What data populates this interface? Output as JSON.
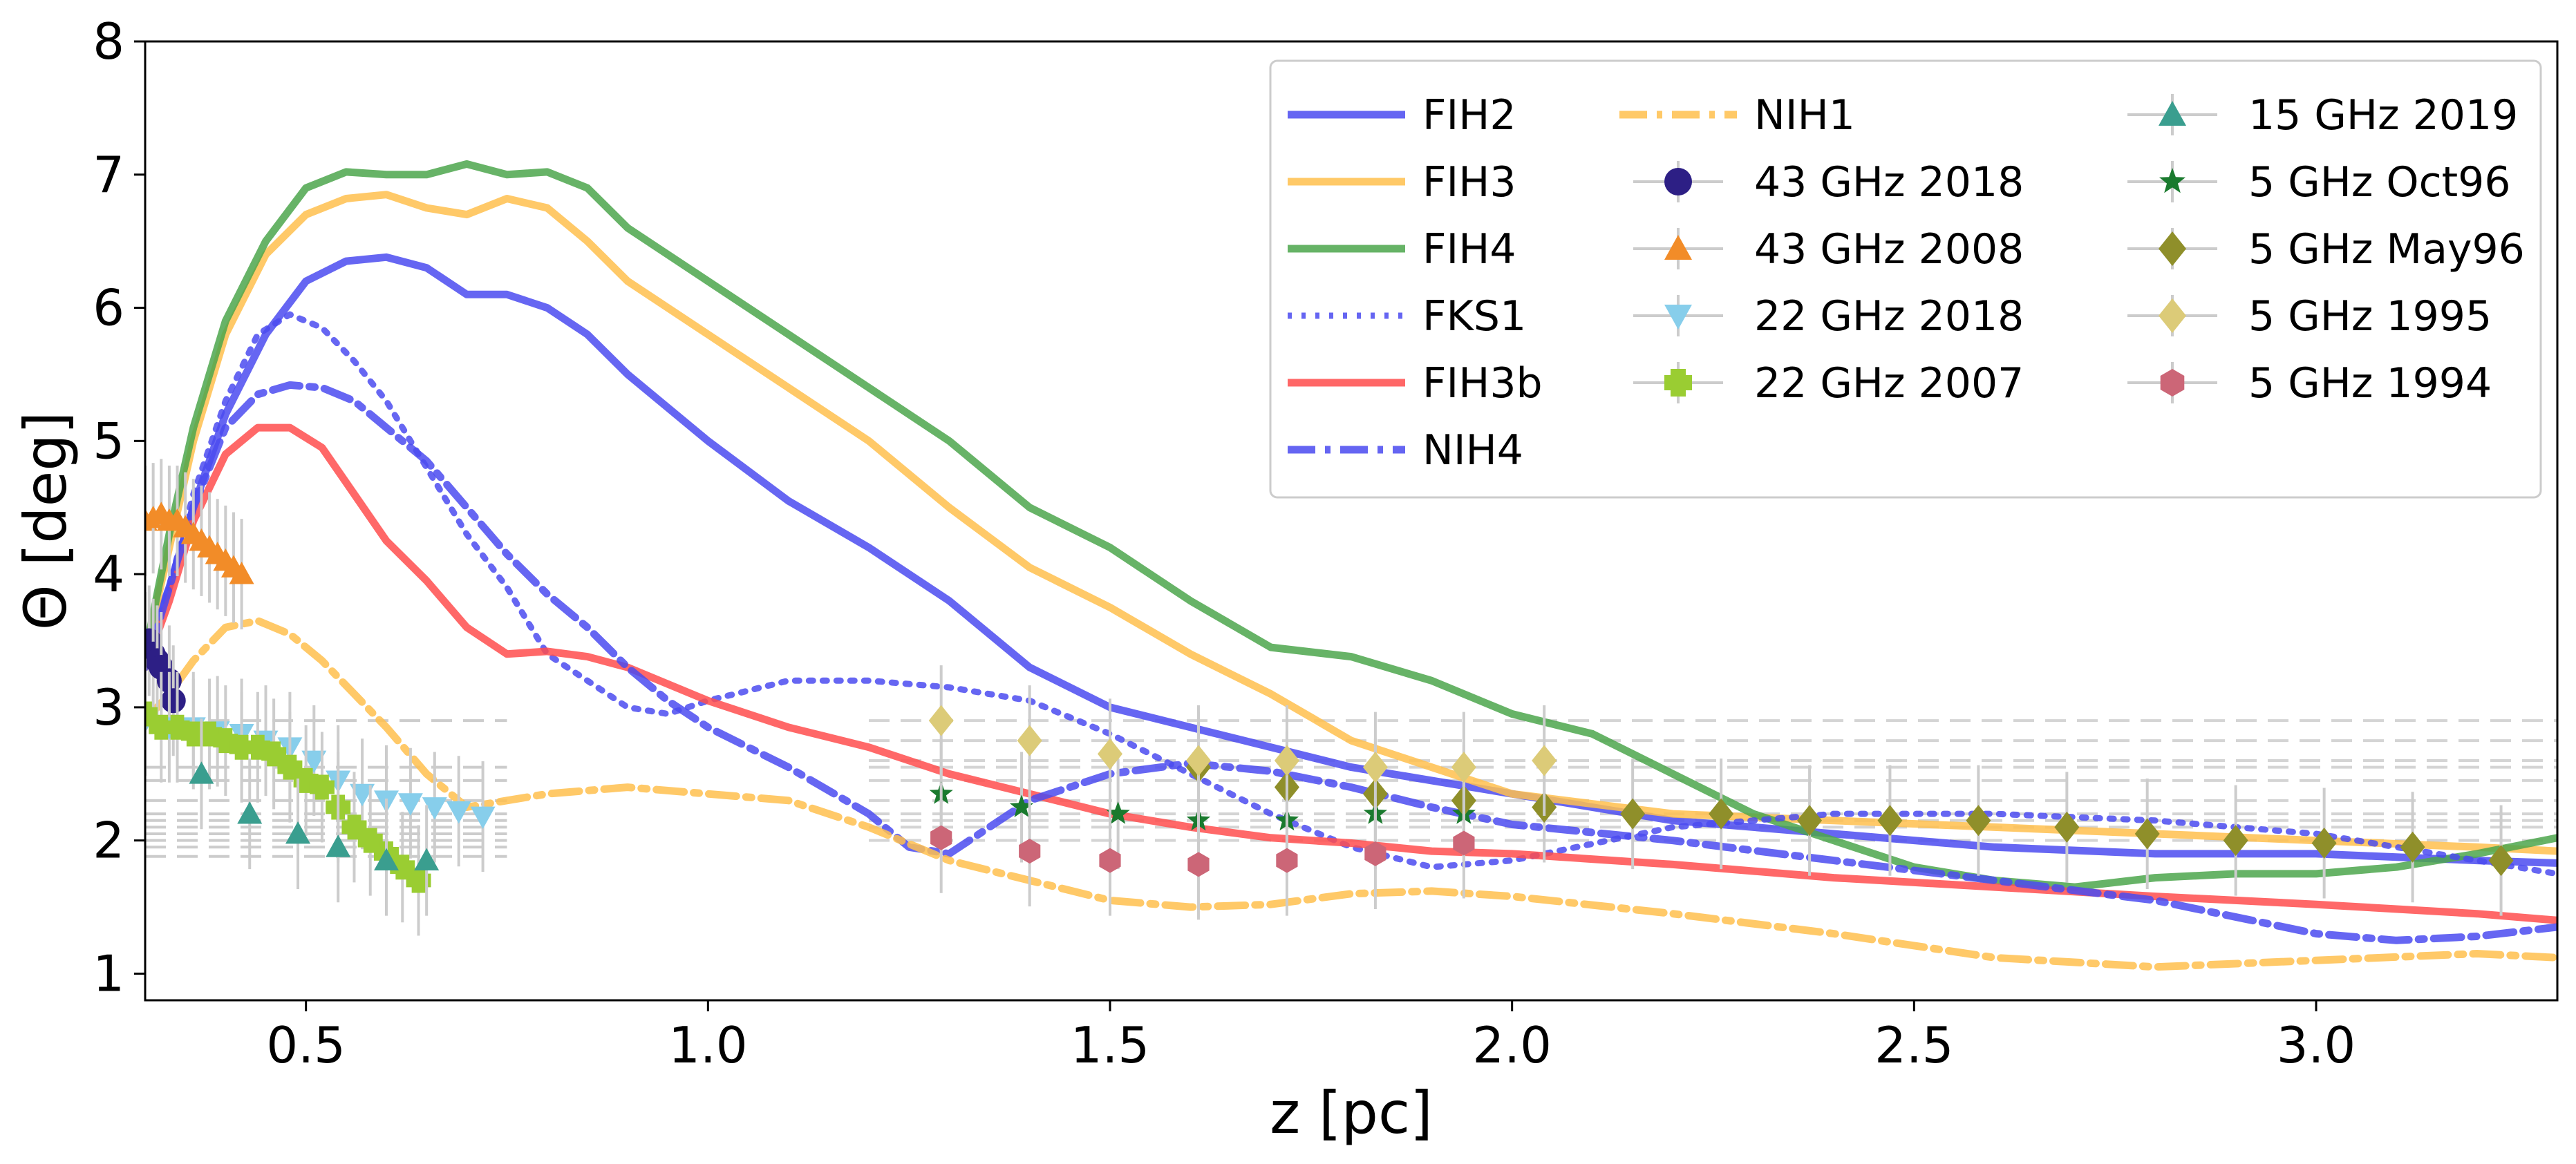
{
  "chart_data": {
    "type": "line",
    "title": "",
    "xlabel": "z [pc]",
    "ylabel": "Θ [deg]",
    "xlim": [
      0.3,
      3.3
    ],
    "ylim": [
      0.8,
      8.0
    ],
    "xticks": [
      0.5,
      1.0,
      1.5,
      2.0,
      2.5,
      3.0
    ],
    "xtick_labels": [
      "0.5",
      "1.0",
      "1.5",
      "2.0",
      "2.5",
      "3.0"
    ],
    "yticks": [
      1,
      2,
      3,
      4,
      5,
      6,
      7,
      8
    ],
    "ytick_labels": [
      "1",
      "2",
      "3",
      "4",
      "5",
      "6",
      "7",
      "8"
    ],
    "legend_position": "top-right",
    "curves": [
      {
        "name": "FIH2",
        "color": "#4b4bf0",
        "style": "solid",
        "x": [
          0.3,
          0.33,
          0.36,
          0.4,
          0.45,
          0.5,
          0.55,
          0.6,
          0.65,
          0.7,
          0.75,
          0.8,
          0.85,
          0.9,
          1.0,
          1.1,
          1.2,
          1.3,
          1.4,
          1.5,
          1.6,
          1.7,
          1.8,
          1.9,
          2.0,
          2.2,
          2.4,
          2.6,
          2.8,
          3.0,
          3.2,
          3.3
        ],
        "y": [
          3.4,
          3.9,
          4.5,
          5.2,
          5.8,
          6.2,
          6.35,
          6.38,
          6.3,
          6.1,
          6.1,
          6.0,
          5.8,
          5.5,
          5.0,
          4.55,
          4.2,
          3.8,
          3.3,
          3.0,
          2.85,
          2.7,
          2.55,
          2.45,
          2.35,
          2.15,
          2.05,
          1.95,
          1.9,
          1.9,
          1.85,
          1.83
        ]
      },
      {
        "name": "FIH3",
        "color": "#ffc04d",
        "style": "solid",
        "x": [
          0.3,
          0.33,
          0.36,
          0.4,
          0.45,
          0.5,
          0.55,
          0.6,
          0.65,
          0.7,
          0.75,
          0.8,
          0.85,
          0.9,
          1.0,
          1.1,
          1.2,
          1.3,
          1.4,
          1.5,
          1.6,
          1.7,
          1.8,
          1.9,
          2.0,
          2.2,
          2.4,
          2.6,
          2.8,
          3.0,
          3.2,
          3.3
        ],
        "y": [
          3.4,
          4.2,
          5.0,
          5.8,
          6.4,
          6.7,
          6.82,
          6.85,
          6.75,
          6.7,
          6.82,
          6.75,
          6.5,
          6.2,
          5.8,
          5.4,
          5.0,
          4.5,
          4.05,
          3.75,
          3.4,
          3.1,
          2.75,
          2.55,
          2.35,
          2.2,
          2.15,
          2.1,
          2.05,
          2.0,
          1.95,
          1.92
        ]
      },
      {
        "name": "FIH4",
        "color": "#4ca64c",
        "style": "solid",
        "x": [
          0.3,
          0.33,
          0.36,
          0.4,
          0.45,
          0.5,
          0.55,
          0.6,
          0.65,
          0.7,
          0.75,
          0.8,
          0.85,
          0.9,
          1.0,
          1.1,
          1.2,
          1.3,
          1.4,
          1.5,
          1.6,
          1.7,
          1.8,
          1.9,
          2.0,
          2.1,
          2.2,
          2.3,
          2.4,
          2.5,
          2.6,
          2.7,
          2.8,
          2.9,
          3.0,
          3.1,
          3.2,
          3.3
        ],
        "y": [
          3.4,
          4.3,
          5.1,
          5.9,
          6.5,
          6.9,
          7.02,
          7.0,
          7.0,
          7.08,
          7.0,
          7.02,
          6.9,
          6.6,
          6.2,
          5.8,
          5.4,
          5.0,
          4.5,
          4.2,
          3.8,
          3.45,
          3.38,
          3.2,
          2.95,
          2.8,
          2.5,
          2.2,
          2.0,
          1.8,
          1.7,
          1.65,
          1.72,
          1.75,
          1.75,
          1.8,
          1.9,
          2.02
        ]
      },
      {
        "name": "FKS1",
        "color": "#4b4bf0",
        "style": "dotted",
        "x": [
          0.3,
          0.33,
          0.36,
          0.4,
          0.44,
          0.48,
          0.52,
          0.56,
          0.6,
          0.65,
          0.7,
          0.75,
          0.8,
          0.85,
          0.9,
          0.95,
          1.0,
          1.1,
          1.2,
          1.3,
          1.4,
          1.5,
          1.6,
          1.7,
          1.8,
          1.9,
          2.0,
          2.2,
          2.4,
          2.6,
          2.8,
          3.0,
          3.2,
          3.3
        ],
        "y": [
          3.3,
          3.9,
          4.6,
          5.3,
          5.8,
          5.95,
          5.85,
          5.6,
          5.3,
          4.8,
          4.3,
          3.9,
          3.4,
          3.2,
          3.0,
          2.95,
          3.05,
          3.2,
          3.2,
          3.15,
          3.05,
          2.8,
          2.5,
          2.2,
          1.95,
          1.8,
          1.85,
          2.1,
          2.2,
          2.2,
          2.15,
          2.05,
          1.85,
          1.75
        ]
      },
      {
        "name": "FIH3b",
        "color": "#ff4d4d",
        "style": "solid",
        "x": [
          0.3,
          0.33,
          0.36,
          0.4,
          0.44,
          0.48,
          0.52,
          0.56,
          0.6,
          0.65,
          0.7,
          0.75,
          0.8,
          0.85,
          0.9,
          1.0,
          1.1,
          1.2,
          1.3,
          1.4,
          1.5,
          1.6,
          1.7,
          1.8,
          1.9,
          2.0,
          2.2,
          2.4,
          2.6,
          2.8,
          3.0,
          3.2,
          3.3
        ],
        "y": [
          3.3,
          3.8,
          4.4,
          4.9,
          5.1,
          5.1,
          4.95,
          4.6,
          4.25,
          3.95,
          3.6,
          3.4,
          3.42,
          3.38,
          3.3,
          3.05,
          2.85,
          2.7,
          2.5,
          2.35,
          2.2,
          2.1,
          2.02,
          1.98,
          1.92,
          1.9,
          1.82,
          1.72,
          1.65,
          1.58,
          1.52,
          1.45,
          1.4
        ]
      },
      {
        "name": "NIH4",
        "color": "#4b4bf0",
        "style": "dashdot",
        "x": [
          0.3,
          0.33,
          0.36,
          0.4,
          0.44,
          0.48,
          0.52,
          0.56,
          0.6,
          0.65,
          0.7,
          0.75,
          0.8,
          0.85,
          0.9,
          0.95,
          1.0,
          1.1,
          1.2,
          1.25,
          1.3,
          1.35,
          1.4,
          1.5,
          1.6,
          1.7,
          1.8,
          1.9,
          2.0,
          2.2,
          2.4,
          2.6,
          2.8,
          3.0,
          3.1,
          3.2,
          3.3
        ],
        "y": [
          3.3,
          3.9,
          4.5,
          5.1,
          5.35,
          5.42,
          5.4,
          5.3,
          5.1,
          4.85,
          4.5,
          4.15,
          3.85,
          3.6,
          3.3,
          3.05,
          2.85,
          2.55,
          2.2,
          1.95,
          1.9,
          2.1,
          2.3,
          2.5,
          2.58,
          2.52,
          2.4,
          2.25,
          2.12,
          2.0,
          1.85,
          1.7,
          1.55,
          1.3,
          1.25,
          1.28,
          1.35
        ]
      },
      {
        "name": "NIH1",
        "color": "#ffc04d",
        "style": "dashdot",
        "x": [
          0.3,
          0.33,
          0.36,
          0.4,
          0.44,
          0.48,
          0.52,
          0.56,
          0.6,
          0.65,
          0.7,
          0.75,
          0.8,
          0.9,
          1.0,
          1.1,
          1.2,
          1.3,
          1.4,
          1.5,
          1.6,
          1.7,
          1.8,
          1.9,
          2.0,
          2.2,
          2.4,
          2.6,
          2.8,
          3.0,
          3.2,
          3.3
        ],
        "y": [
          2.9,
          3.1,
          3.35,
          3.6,
          3.65,
          3.55,
          3.35,
          3.1,
          2.85,
          2.5,
          2.25,
          2.3,
          2.35,
          2.4,
          2.35,
          2.3,
          2.1,
          1.85,
          1.7,
          1.55,
          1.5,
          1.52,
          1.6,
          1.62,
          1.58,
          1.45,
          1.3,
          1.12,
          1.05,
          1.1,
          1.15,
          1.12
        ]
      }
    ],
    "markers": [
      {
        "name": "43 GHz 2018",
        "color": "#2d1f85",
        "marker": "circle",
        "x": [
          0.3,
          0.305,
          0.31,
          0.315,
          0.32,
          0.33,
          0.335
        ],
        "y": [
          3.45,
          3.5,
          3.4,
          3.35,
          3.3,
          3.2,
          3.05
        ]
      },
      {
        "name": "43 GHz 2008",
        "color": "#f28c28",
        "marker": "triangle-up",
        "x": [
          0.3,
          0.31,
          0.32,
          0.33,
          0.34,
          0.35,
          0.36,
          0.37,
          0.38,
          0.39,
          0.4,
          0.41,
          0.42
        ],
        "y": [
          4.4,
          4.42,
          4.45,
          4.4,
          4.4,
          4.35,
          4.3,
          4.25,
          4.2,
          4.15,
          4.1,
          4.05,
          4.0
        ]
      },
      {
        "name": "22 GHz 2018",
        "color": "#87ceeb",
        "marker": "triangle-down",
        "x": [
          0.3,
          0.33,
          0.36,
          0.39,
          0.42,
          0.45,
          0.48,
          0.51,
          0.54,
          0.57,
          0.6,
          0.63,
          0.66,
          0.69,
          0.72
        ],
        "y": [
          2.9,
          2.85,
          2.85,
          2.82,
          2.8,
          2.75,
          2.7,
          2.6,
          2.45,
          2.35,
          2.3,
          2.28,
          2.25,
          2.22,
          2.18
        ]
      },
      {
        "name": "22 GHz 2007",
        "color": "#9acd32",
        "marker": "plus",
        "x": [
          0.3,
          0.32,
          0.34,
          0.36,
          0.38,
          0.4,
          0.42,
          0.44,
          0.46,
          0.48,
          0.5,
          0.52,
          0.54,
          0.56,
          0.58,
          0.6,
          0.62,
          0.64
        ],
        "y": [
          2.95,
          2.85,
          2.85,
          2.8,
          2.8,
          2.75,
          2.7,
          2.7,
          2.65,
          2.55,
          2.45,
          2.4,
          2.25,
          2.1,
          2.0,
          1.9,
          1.8,
          1.7
        ]
      },
      {
        "name": "15 GHz 2019",
        "color": "#3a9e8f",
        "marker": "triangle-up",
        "x": [
          0.37,
          0.43,
          0.49,
          0.54,
          0.6,
          0.65
        ],
        "y": [
          2.5,
          2.2,
          2.05,
          1.95,
          1.85,
          1.85
        ]
      },
      {
        "name": "5 GHz Oct96",
        "color": "#1a7a2e",
        "marker": "star",
        "x": [
          1.29,
          1.39,
          1.51,
          1.61,
          1.72,
          1.83,
          1.94
        ],
        "y": [
          2.35,
          2.25,
          2.2,
          2.15,
          2.15,
          2.2,
          2.2
        ]
      },
      {
        "name": "5 GHz May96",
        "color": "#8f8f2a",
        "marker": "diamond",
        "x": [
          1.61,
          1.72,
          1.83,
          1.94,
          2.04,
          2.15,
          2.26,
          2.37,
          2.47,
          2.58,
          2.69,
          2.79,
          2.9,
          3.01,
          3.12,
          3.23
        ],
        "y": [
          2.55,
          2.4,
          2.35,
          2.3,
          2.25,
          2.2,
          2.2,
          2.15,
          2.15,
          2.15,
          2.1,
          2.05,
          2.0,
          1.98,
          1.95,
          1.85
        ]
      },
      {
        "name": "5 GHz 1995",
        "color": "#dccb78",
        "marker": "diamond",
        "x": [
          1.29,
          1.4,
          1.5,
          1.61,
          1.72,
          1.83,
          1.94,
          2.04
        ],
        "y": [
          2.9,
          2.75,
          2.65,
          2.6,
          2.6,
          2.55,
          2.55,
          2.6
        ]
      },
      {
        "name": "5 GHz 1994",
        "color": "#cc6677",
        "marker": "hexagon",
        "x": [
          1.29,
          1.4,
          1.5,
          1.61,
          1.72,
          1.83,
          1.94
        ],
        "y": [
          2.02,
          1.92,
          1.85,
          1.82,
          1.85,
          1.9,
          1.98
        ]
      }
    ],
    "legend": {
      "columns": [
        [
          "FIH2",
          "FIH3",
          "FIH4",
          "FKS1",
          "FIH3b",
          "NIH4"
        ],
        [
          "NIH1",
          "43 GHz 2018",
          "43 GHz 2008",
          "22 GHz 2018",
          "22 GHz 2007"
        ],
        [
          "15 GHz 2019",
          "5 GHz Oct96",
          "5 GHz May96",
          "5 GHz 1995",
          "5 GHz 1994"
        ]
      ]
    }
  }
}
